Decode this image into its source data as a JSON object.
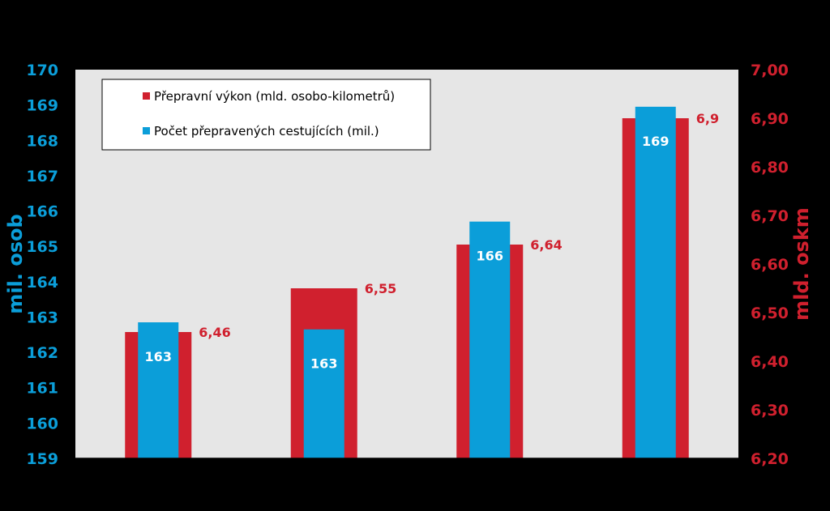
{
  "chart_data": {
    "type": "bar",
    "categories": [
      "",
      "",
      "",
      ""
    ],
    "y_left": {
      "label": "mil. osob",
      "range": [
        159,
        170
      ],
      "ticks": [
        "159",
        "160",
        "161",
        "162",
        "163",
        "164",
        "165",
        "166",
        "167",
        "168",
        "169",
        "170"
      ]
    },
    "y_right": {
      "label": "mld. oskm",
      "range": [
        6.2,
        7.0
      ],
      "ticks": [
        "6,20",
        "6,30",
        "6,40",
        "6,50",
        "6,60",
        "6,70",
        "6,80",
        "6,90",
        "7,00"
      ]
    },
    "series": [
      {
        "name": "Přepravní výkon (mld. osobo-kilometrů)",
        "axis": "right",
        "color": "#D0202E",
        "values": [
          6.46,
          6.55,
          6.64,
          6.9
        ],
        "labels": [
          "6,46",
          "6,55",
          "6,64",
          "6,9"
        ]
      },
      {
        "name": "Počet přepravených cestujících (mil.)",
        "axis": "left",
        "color": "#0B9ED9",
        "values": [
          162.85,
          162.65,
          165.7,
          168.95
        ],
        "labels": [
          "163",
          "163",
          "166",
          "169"
        ]
      }
    ],
    "plot_background": "#E6E6E6",
    "left_axis_color": "#0B9ED9",
    "right_axis_color": "#D0202E",
    "grid": false,
    "legend_position": "top-left"
  }
}
